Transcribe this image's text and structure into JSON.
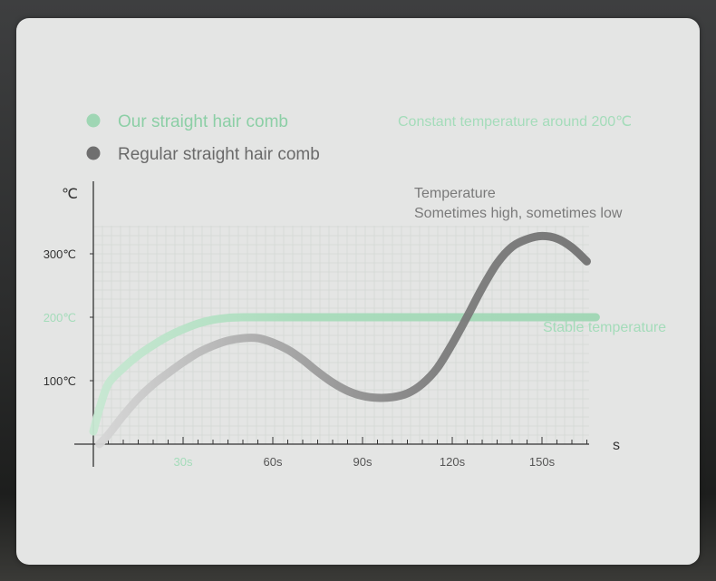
{
  "chart_data": {
    "type": "line",
    "xlabel": "s",
    "ylabel": "℃",
    "xlim": [
      0,
      168
    ],
    "ylim": [
      0,
      330
    ],
    "x_ticks": [
      {
        "value": 30,
        "label": "30s",
        "highlight": true
      },
      {
        "value": 60,
        "label": "60s",
        "highlight": false
      },
      {
        "value": 90,
        "label": "90s",
        "highlight": false
      },
      {
        "value": 120,
        "label": "120s",
        "highlight": false
      },
      {
        "value": 150,
        "label": "150s",
        "highlight": false
      }
    ],
    "y_ticks": [
      {
        "value": 100,
        "label": "100℃",
        "highlight": false
      },
      {
        "value": 200,
        "label": "200℃",
        "highlight": true
      },
      {
        "value": 300,
        "label": "300℃",
        "highlight": false
      }
    ],
    "grid": true,
    "legend_position": "top-left",
    "series": [
      {
        "name": "Our straight hair comb",
        "color": "#9fd6b4",
        "x": [
          0,
          2,
          5,
          10,
          15,
          20,
          25,
          30,
          35,
          40,
          45,
          50,
          60,
          80,
          100,
          120,
          140,
          168
        ],
        "y": [
          20,
          55,
          95,
          120,
          140,
          156,
          170,
          181,
          190,
          196,
          199,
          200,
          200,
          200,
          200,
          200,
          200,
          200
        ]
      },
      {
        "name": "Regular straight hair comb",
        "color": "#6f6f6f",
        "x": [
          2,
          5,
          10,
          15,
          20,
          25,
          30,
          35,
          40,
          45,
          50,
          55,
          60,
          65,
          70,
          75,
          80,
          85,
          90,
          95,
          100,
          105,
          110,
          115,
          120,
          125,
          130,
          135,
          140,
          145,
          150,
          155,
          160,
          165
        ],
        "y": [
          0,
          15,
          45,
          72,
          94,
          112,
          129,
          144,
          155,
          163,
          167,
          167,
          160,
          149,
          133,
          114,
          97,
          84,
          76,
          73,
          74,
          80,
          95,
          120,
          158,
          201,
          246,
          285,
          311,
          323,
          328,
          324,
          310,
          288
        ]
      }
    ],
    "annotations": {
      "constant": "Constant temperature around 200℃",
      "temperature_line1": "Temperature",
      "temperature_line2": "Sometimes high, sometimes low",
      "stable": "Stable temperature"
    }
  }
}
